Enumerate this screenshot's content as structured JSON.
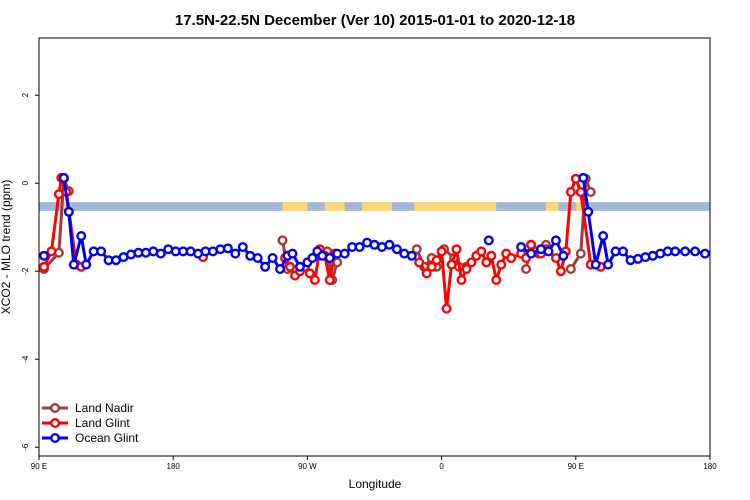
{
  "chart_data": {
    "type": "line",
    "title": "17.5N-22.5N December (Ver 10)   2015-01-01 to 2020-12-18",
    "xlabel": "Longitude",
    "ylabel": "XCO2 - MLO trend (ppm)",
    "xlim": [
      -90,
      180
    ],
    "ylim": [
      -6.2,
      3.3
    ],
    "grid": false,
    "legend_position": "bottom-left",
    "x_ticks": [
      {
        "value": -90,
        "label": "90 E"
      },
      {
        "value": -36,
        "label": "180"
      },
      {
        "value": 18,
        "label": "90 W"
      },
      {
        "value": 72,
        "label": "0"
      },
      {
        "value": 126,
        "label": "90 E"
      },
      {
        "value": 180,
        "label": "180"
      }
    ],
    "y_ticks": [
      {
        "value": 2,
        "label": "2"
      },
      {
        "value": 0,
        "label": "0"
      },
      {
        "value": -2,
        "label": "-2"
      },
      {
        "value": -4,
        "label": "-4"
      },
      {
        "value": -6,
        "label": "-6"
      }
    ],
    "background_band": {
      "y_range": [
        -0.63,
        -0.43
      ],
      "ocean_color": "#a3b8d9",
      "land_color": "#fbd77a",
      "land_segments": [
        [
          -81,
          -79
        ],
        [
          8,
          18
        ],
        [
          25,
          33
        ],
        [
          40,
          52
        ],
        [
          61,
          94
        ],
        [
          114,
          119
        ],
        [
          126,
          130
        ]
      ]
    },
    "series": [
      {
        "name": "Land Nadir",
        "color": "#a33a3a",
        "points": [
          [
            -88,
            -1.95
          ],
          [
            -82,
            -1.58
          ],
          [
            -80,
            0.1
          ],
          [
            -78,
            -0.18
          ],
          [
            8,
            -1.3
          ],
          [
            10,
            -1.95
          ],
          [
            26,
            -1.55
          ],
          [
            28,
            -2.2
          ],
          [
            30,
            -1.8
          ],
          [
            62,
            -1.5
          ],
          [
            65,
            -1.9
          ],
          [
            68,
            -1.7
          ],
          [
            70,
            -1.9
          ],
          [
            73,
            -1.5
          ],
          [
            77,
            -1.7
          ],
          [
            79,
            -1.9
          ],
          [
            82,
            -1.9
          ],
          [
            106,
            -1.95
          ],
          [
            108,
            -1.4
          ],
          [
            111,
            -1.6
          ],
          [
            114,
            -1.4
          ],
          [
            124,
            -1.95
          ],
          [
            128,
            -1.6
          ],
          [
            130,
            0.1
          ],
          [
            132,
            -0.2
          ]
        ]
      },
      {
        "name": "Land Glint",
        "color": "#ff0000",
        "points": [
          [
            -88,
            -1.9
          ],
          [
            -85,
            -1.55
          ],
          [
            -82,
            -0.25
          ],
          [
            -81,
            0.12
          ],
          [
            -79,
            -0.2
          ],
          [
            -75,
            -1.85
          ],
          [
            -73,
            -1.9
          ],
          [
            -24,
            -1.68
          ],
          [
            9,
            -1.7
          ],
          [
            11,
            -1.9
          ],
          [
            13,
            -2.1
          ],
          [
            15,
            -2.0
          ],
          [
            17,
            -1.9
          ],
          [
            19,
            -2.05
          ],
          [
            21,
            -2.2
          ],
          [
            23,
            -1.5
          ],
          [
            25,
            -1.65
          ],
          [
            27,
            -2.2
          ],
          [
            29,
            -1.6
          ],
          [
            63,
            -1.8
          ],
          [
            66,
            -2.05
          ],
          [
            68,
            -1.9
          ],
          [
            70,
            -1.75
          ],
          [
            72,
            -1.55
          ],
          [
            74,
            -2.85
          ],
          [
            76,
            -1.85
          ],
          [
            78,
            -1.5
          ],
          [
            80,
            -2.2
          ],
          [
            82,
            -1.95
          ],
          [
            84,
            -1.8
          ],
          [
            86,
            -1.65
          ],
          [
            88,
            -1.55
          ],
          [
            90,
            -1.8
          ],
          [
            92,
            -1.65
          ],
          [
            94,
            -2.2
          ],
          [
            96,
            -1.85
          ],
          [
            98,
            -1.6
          ],
          [
            100,
            -1.7
          ],
          [
            104,
            -1.6
          ],
          [
            106,
            -1.7
          ],
          [
            108,
            -1.4
          ],
          [
            110,
            -1.55
          ],
          [
            112,
            -1.6
          ],
          [
            114,
            -1.5
          ],
          [
            118,
            -1.7
          ],
          [
            120,
            -2.0
          ],
          [
            122,
            -1.55
          ],
          [
            124,
            -0.2
          ],
          [
            126,
            0.1
          ],
          [
            128,
            -0.2
          ],
          [
            132,
            -1.85
          ],
          [
            136,
            -1.9
          ]
        ]
      },
      {
        "name": "Ocean Glint",
        "color": "#0000ee",
        "points": [
          [
            -88,
            -1.65
          ],
          [
            -80,
            0.12
          ],
          [
            -78,
            -0.65
          ],
          [
            -76,
            -1.85
          ],
          [
            -73,
            -1.2
          ],
          [
            -71,
            -1.85
          ],
          [
            -68,
            -1.55
          ],
          [
            -65,
            -1.55
          ],
          [
            -62,
            -1.75
          ],
          [
            -59,
            -1.75
          ],
          [
            -56,
            -1.68
          ],
          [
            -53,
            -1.62
          ],
          [
            -50,
            -1.58
          ],
          [
            -47,
            -1.58
          ],
          [
            -44,
            -1.55
          ],
          [
            -41,
            -1.6
          ],
          [
            -38,
            -1.5
          ],
          [
            -35,
            -1.55
          ],
          [
            -32,
            -1.55
          ],
          [
            -29,
            -1.55
          ],
          [
            -26,
            -1.6
          ],
          [
            -23,
            -1.55
          ],
          [
            -20,
            -1.55
          ],
          [
            -17,
            -1.5
          ],
          [
            -14,
            -1.48
          ],
          [
            -11,
            -1.6
          ],
          [
            -8,
            -1.45
          ],
          [
            -5,
            -1.65
          ],
          [
            -2,
            -1.7
          ],
          [
            1,
            -1.9
          ],
          [
            4,
            -1.7
          ],
          [
            7,
            -1.95
          ],
          [
            10,
            -1.65
          ],
          [
            12,
            -1.6
          ],
          [
            15,
            -1.9
          ],
          [
            18,
            -1.8
          ],
          [
            20,
            -1.7
          ],
          [
            22,
            -1.55
          ],
          [
            24,
            -1.65
          ],
          [
            27,
            -1.7
          ],
          [
            30,
            -1.6
          ],
          [
            33,
            -1.6
          ],
          [
            36,
            -1.45
          ],
          [
            39,
            -1.45
          ],
          [
            42,
            -1.35
          ],
          [
            45,
            -1.4
          ],
          [
            48,
            -1.45
          ],
          [
            51,
            -1.4
          ],
          [
            54,
            -1.5
          ],
          [
            57,
            -1.6
          ],
          [
            60,
            -1.65
          ],
          [
            91,
            -1.3
          ],
          [
            104,
            -1.45
          ],
          [
            108,
            -1.6
          ],
          [
            112,
            -1.5
          ],
          [
            115,
            -1.55
          ],
          [
            118,
            -1.3
          ],
          [
            121,
            -1.65
          ],
          [
            129,
            0.12
          ],
          [
            131,
            -0.65
          ],
          [
            134,
            -1.85
          ],
          [
            137,
            -1.2
          ],
          [
            139,
            -1.85
          ],
          [
            142,
            -1.55
          ],
          [
            145,
            -1.55
          ],
          [
            148,
            -1.75
          ],
          [
            151,
            -1.72
          ],
          [
            154,
            -1.68
          ],
          [
            157,
            -1.65
          ],
          [
            160,
            -1.6
          ],
          [
            163,
            -1.55
          ],
          [
            166,
            -1.55
          ],
          [
            170,
            -1.55
          ],
          [
            174,
            -1.55
          ],
          [
            178,
            -1.6
          ]
        ]
      }
    ]
  }
}
